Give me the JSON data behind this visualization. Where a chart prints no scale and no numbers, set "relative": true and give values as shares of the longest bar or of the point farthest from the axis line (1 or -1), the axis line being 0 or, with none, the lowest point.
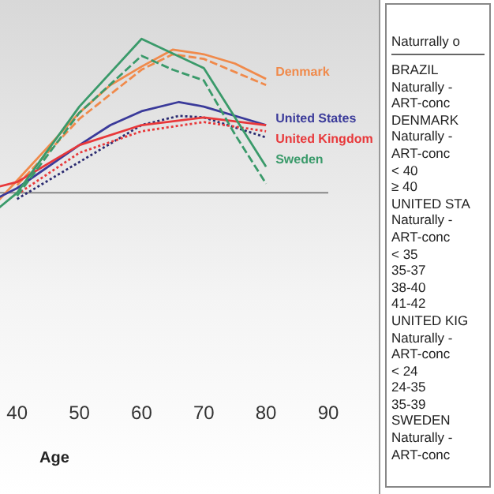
{
  "chart_data": [
    {
      "type": "line",
      "xlabel": "Age",
      "relative": true,
      "xlim": [
        37,
        90
      ],
      "xticks": [
        40,
        50,
        60,
        70,
        80,
        90
      ],
      "marker": "none",
      "series": [
        {
          "name": "Denmark",
          "color": "#f08a4b",
          "line_style": "solid",
          "x": [
            37,
            40,
            45,
            50,
            55,
            60,
            65,
            70,
            75,
            80
          ],
          "values": [
            -0.05,
            0.08,
            0.3,
            0.52,
            0.7,
            0.82,
            0.93,
            0.9,
            0.84,
            0.74
          ]
        },
        {
          "color": "#f08a4b",
          "line_style": "dashed",
          "x": [
            40,
            50,
            60,
            65,
            70,
            80
          ],
          "values": [
            0.05,
            0.48,
            0.8,
            0.9,
            0.87,
            0.7
          ]
        },
        {
          "name": "United States",
          "color": "#3a3a9a",
          "line_style": "solid",
          "x": [
            37,
            40,
            50,
            55,
            60,
            66,
            70,
            80
          ],
          "values": [
            -0.03,
            0.03,
            0.31,
            0.44,
            0.53,
            0.59,
            0.56,
            0.44
          ]
        },
        {
          "color": "#2a2a70",
          "line_style": "dotted",
          "x": [
            40,
            50,
            60,
            66,
            70,
            80
          ],
          "values": [
            -0.04,
            0.2,
            0.44,
            0.5,
            0.49,
            0.36
          ]
        },
        {
          "name": "United Kingdom",
          "color": "#e8383a",
          "line_style": "solid",
          "x": [
            37,
            40,
            50,
            60,
            70,
            80
          ],
          "values": [
            0.04,
            0.07,
            0.31,
            0.44,
            0.49,
            0.44
          ]
        },
        {
          "color": "#e8383a",
          "line_style": "dotted",
          "x": [
            40,
            50,
            60,
            70,
            80
          ],
          "values": [
            -0.01,
            0.26,
            0.4,
            0.46,
            0.4
          ]
        },
        {
          "name": "Sweden",
          "color": "#3a9a6a",
          "line_style": "solid",
          "x": [
            37,
            40,
            50,
            60,
            70,
            80
          ],
          "values": [
            -0.1,
            0,
            0.56,
            1,
            0.81,
            0.17
          ]
        },
        {
          "color": "#3a9a6a",
          "line_style": "dashed",
          "x": [
            40,
            50,
            60,
            65,
            70,
            75,
            80
          ],
          "values": [
            -0.02,
            0.52,
            0.89,
            0.8,
            0.73,
            0.38,
            0.06
          ]
        }
      ]
    },
    {
      "type": "other",
      "title": "Naturrally o",
      "annotations": [
        "BRAZIL",
        "Naturally -",
        "ART-conc",
        "DENMARK",
        "Naturally -",
        "ART-conc",
        "< 40",
        "≥ 40",
        "UNITED STA",
        "Naturally -",
        "ART-conc",
        "< 35",
        "35-37",
        "38-40",
        "41-42",
        "UNITED KIG",
        "Naturally -",
        "ART-conc",
        "< 24",
        "24-35",
        "35-39",
        "SWEDEN",
        "Naturally -",
        "ART-conc"
      ]
    }
  ]
}
